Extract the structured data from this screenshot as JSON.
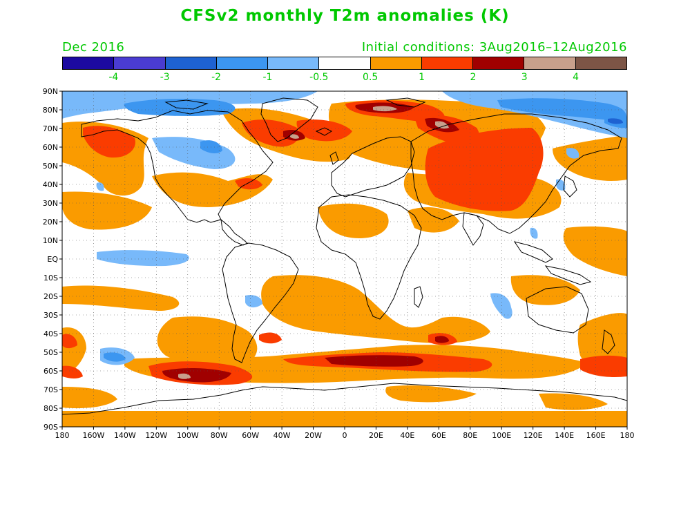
{
  "header": {
    "title": "CFSv2 monthly T2m anomalies (K)",
    "valid_month": "Dec 2016",
    "initial_conditions": "Initial conditions: 3Aug2016–12Aug2016"
  },
  "colorbar": {
    "colors": [
      "#1c0aa0",
      "#4a3cd2",
      "#1e62d2",
      "#3c96f0",
      "#78b9fa",
      "#ffffff",
      "#fa9b00",
      "#fa3c00",
      "#a00000",
      "#c8a08c",
      "#7d5546"
    ],
    "labels": [
      "-4",
      "-3",
      "-2",
      "-1",
      "-0.5",
      "0.5",
      "1",
      "2",
      "3",
      "4"
    ]
  },
  "axes": {
    "lat_labels": [
      "90N",
      "80N",
      "70N",
      "60N",
      "50N",
      "40N",
      "30N",
      "20N",
      "10N",
      "EQ",
      "10S",
      "20S",
      "30S",
      "40S",
      "50S",
      "60S",
      "70S",
      "80S",
      "90S"
    ],
    "lon_labels": [
      "180",
      "160W",
      "140W",
      "120W",
      "100W",
      "80W",
      "60W",
      "40W",
      "20W",
      "0",
      "20E",
      "40E",
      "60E",
      "80E",
      "100E",
      "120E",
      "140E",
      "160E",
      "180"
    ]
  }
}
